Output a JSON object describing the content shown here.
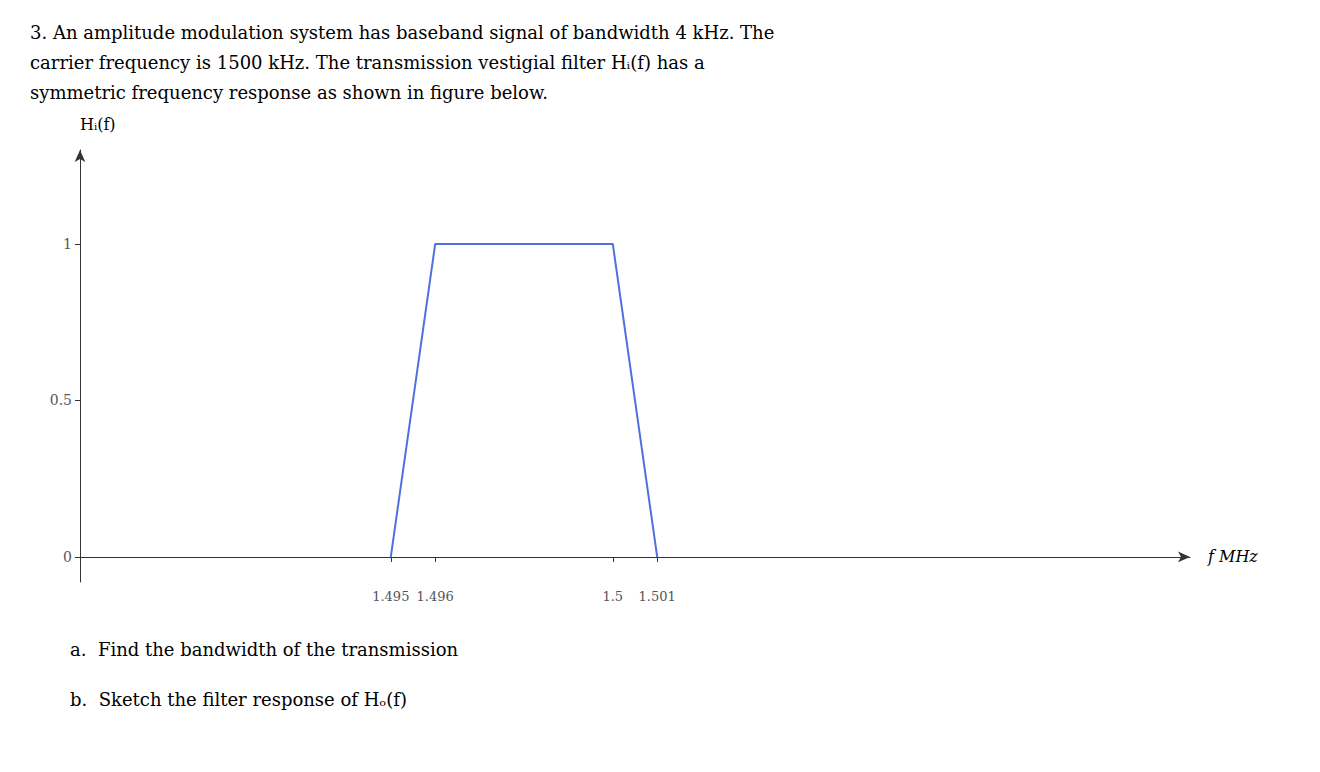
{
  "chart_data": {
    "type": "line",
    "title": "3. An amplitude modulation system has baseband signal of bandwidth 4 kHz. The\ncarrier frequency is 1500 kHz. The transmission vestigial filter Hᵢ(f) has a\nsymmetric frequency response as shown in figure below.",
    "x_label": "f MHz",
    "y_label": "Hᵢ(f)",
    "annotations": [
      "a.  Find the bandwidth of the transmission",
      "b.  Sketch the filter response of Hₒ(f)"
    ],
    "x": [
      1.495,
      1.496,
      1.5,
      1.501
    ],
    "values": [
      0,
      1,
      1,
      0
    ],
    "xlim": [
      1.488,
      1.513
    ],
    "xticks": [
      1.495,
      1.496,
      1.5,
      1.501
    ],
    "ylim": [
      -0.08,
      1.3
    ],
    "yticks": [
      0,
      0.5,
      1
    ],
    "grid": false
  }
}
